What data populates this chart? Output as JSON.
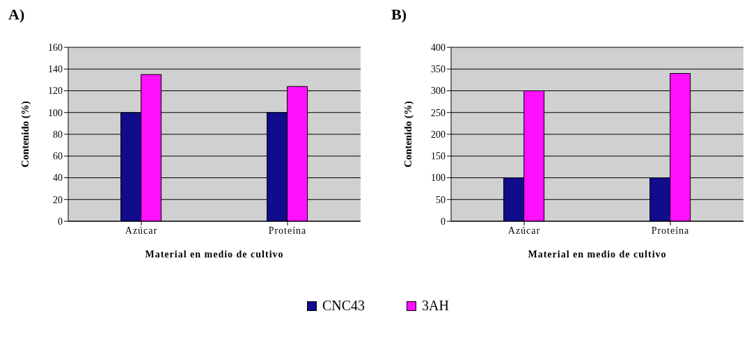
{
  "chart_data": [
    {
      "type": "bar",
      "title": "A)",
      "xlabel": "Material en medio de cultivo",
      "ylabel": "Contenido (%)",
      "categories": [
        "Azúcar",
        "Proteína"
      ],
      "series": [
        {
          "name": "CNC43",
          "color": "#110c8c",
          "values": [
            100,
            100
          ]
        },
        {
          "name": "3AH",
          "color": "#ff10ff",
          "values": [
            135,
            124
          ]
        }
      ],
      "ylim": [
        0,
        160
      ],
      "yticks": [
        0,
        20,
        40,
        60,
        80,
        100,
        120,
        140,
        160
      ],
      "grid": "y",
      "legend": "bottom"
    },
    {
      "type": "bar",
      "title": "B)",
      "xlabel": "Material en medio de cultivo",
      "ylabel": "Contenido (%)",
      "categories": [
        "Azúcar",
        "Proteína"
      ],
      "series": [
        {
          "name": "CNC43",
          "color": "#110c8c",
          "values": [
            100,
            100
          ]
        },
        {
          "name": "3AH",
          "color": "#ff10ff",
          "values": [
            300,
            340
          ]
        }
      ],
      "ylim": [
        0,
        400
      ],
      "yticks": [
        0,
        50,
        100,
        150,
        200,
        250,
        300,
        350,
        400
      ],
      "grid": "y",
      "legend": "bottom"
    }
  ]
}
